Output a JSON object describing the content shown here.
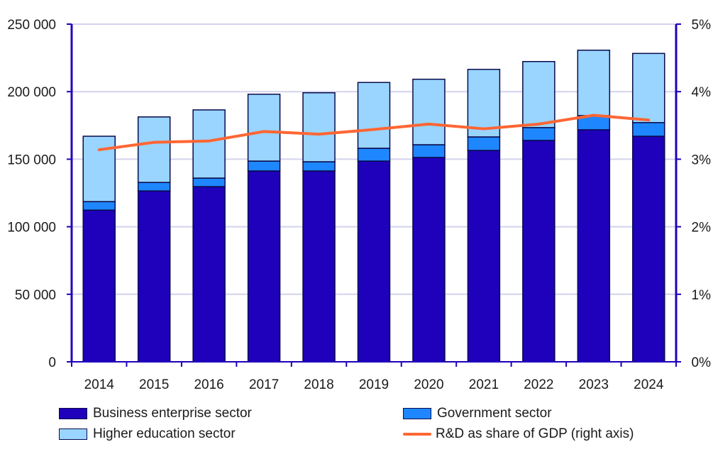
{
  "chart_data": {
    "type": "bar",
    "stacked": true,
    "categories": [
      "2014",
      "2015",
      "2016",
      "2017",
      "2018",
      "2019",
      "2020",
      "2021",
      "2022",
      "2023",
      "2024"
    ],
    "series": [
      {
        "name": "Business enterprise sector",
        "color": "#1f00bb",
        "values": [
          112300,
          126500,
          129700,
          141300,
          141300,
          148600,
          151300,
          156500,
          163900,
          171800,
          167000
        ]
      },
      {
        "name": "Government sector",
        "color": "#1e87ff",
        "values": [
          6300,
          6300,
          6300,
          7300,
          6800,
          9500,
          9400,
          10000,
          9500,
          10500,
          10100
        ]
      },
      {
        "name": "Higher education sector",
        "color": "#99d5ff",
        "values": [
          48400,
          48500,
          50500,
          49500,
          51100,
          48700,
          48500,
          50000,
          48900,
          48400,
          51200
        ]
      }
    ],
    "line_series": {
      "name": "R&D as share of GDP (right axis)",
      "color": "#ff6633",
      "axis": "right",
      "values": [
        3.14,
        3.25,
        3.27,
        3.41,
        3.37,
        3.44,
        3.52,
        3.45,
        3.52,
        3.65,
        3.58
      ]
    },
    "left_axis": {
      "range": [
        0,
        250000
      ],
      "ticks": [
        "0",
        "50 000",
        "100 000",
        "150 000",
        "200 000",
        "250 000"
      ]
    },
    "right_axis": {
      "range": [
        0,
        5
      ],
      "ticks": [
        "0%",
        "1%",
        "2%",
        "3%",
        "4%",
        "5%"
      ]
    },
    "grid": true,
    "legend_placement": "bottom"
  }
}
